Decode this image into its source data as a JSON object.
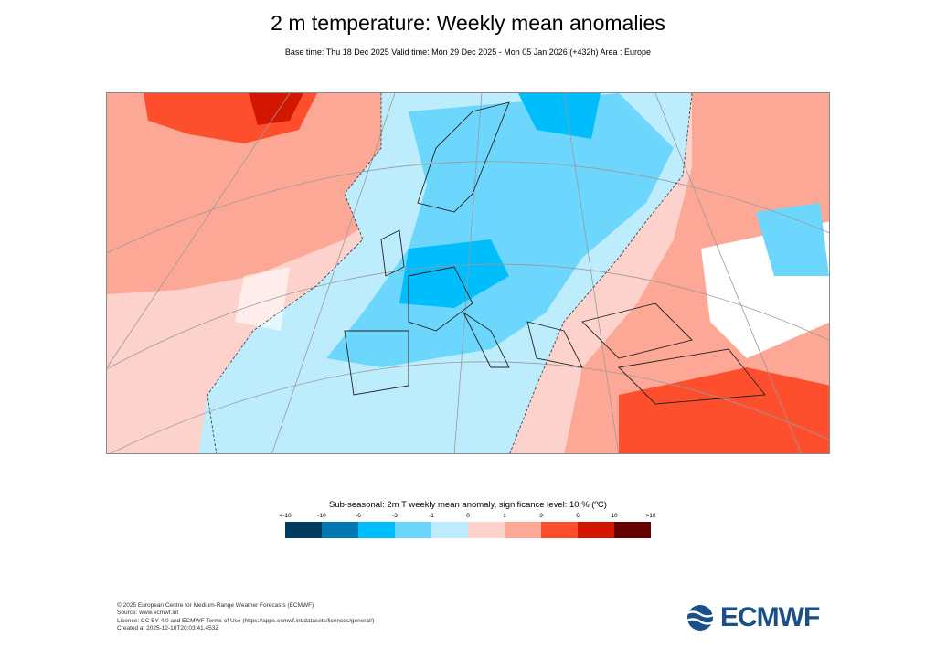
{
  "header": {
    "title": "2 m temperature: Weekly mean anomalies",
    "subtitle": "Base time: Thu 18 Dec 2025 Valid time: Mon 29 Dec 2025 - Mon 05 Jan 2026 (+432h) Area : Europe"
  },
  "map": {
    "area": "Europe",
    "projection": "polar stereographic",
    "dominant_anomalies": {
      "western_central_europe": "cold (-1 to -6 °C)",
      "greenland_north_atlantic": "warm (1 to 10 °C)",
      "eastern_mediterranean_middle_east": "warm (1 to 6 °C)"
    }
  },
  "legend": {
    "title": "Sub-seasonal: 2m T weekly mean anomaly, significance level: 10 % (ºC)",
    "ticks": [
      "<-10",
      "-10",
      "-6",
      "-3",
      "-1",
      "0",
      "1",
      "3",
      "6",
      "10",
      ">10"
    ],
    "colors": [
      "#003a5c",
      "#0078b4",
      "#00bdfb",
      "#6dd6fd",
      "#bdedfd",
      "#fdd2cc",
      "#fda896",
      "#fd4f2e",
      "#d31600",
      "#650000"
    ]
  },
  "footer": {
    "lines": [
      "© 2025 European Centre for Medium-Range Weather Forecasts (ECMWF)",
      "Source: www.ecmwf.int",
      "Licence: CC BY 4.0 and ECMWF Terms of Use (https://apps.ecmwf.int/datasets/licences/general/)",
      "Created at 2025-12-18T20:03:41.453Z"
    ],
    "logo_text": "ECMWF"
  }
}
